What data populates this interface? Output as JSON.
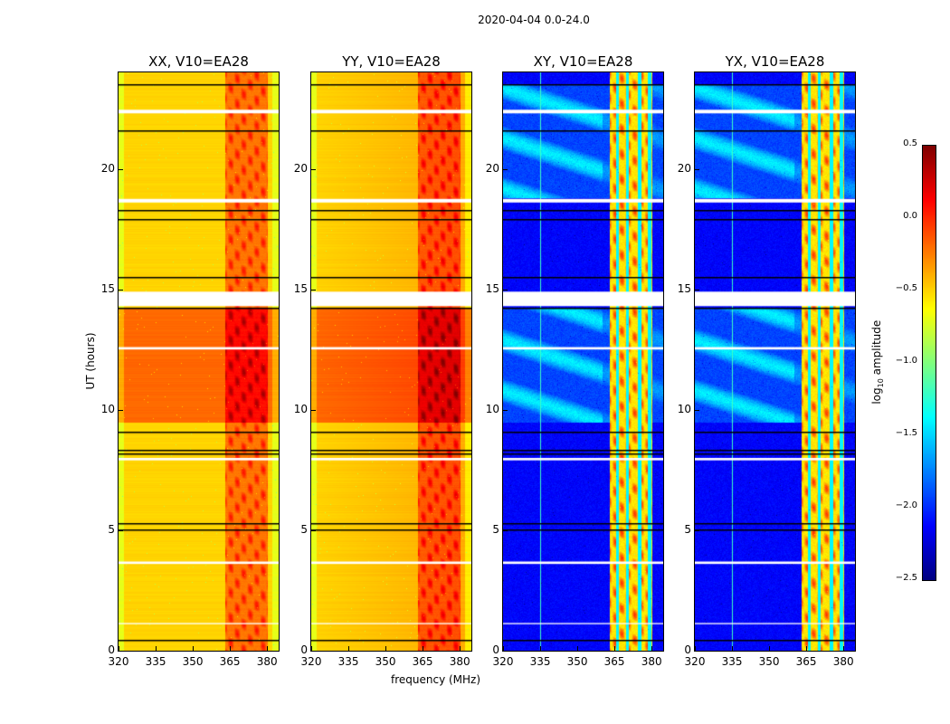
{
  "chart_data": {
    "type": "heatmap",
    "title": "2020-04-04 0.0-24.0",
    "xlabel": "frequency (MHz)",
    "ylabel": "UT (hours)",
    "xlim": [
      320,
      384.7
    ],
    "ylim": [
      0,
      24
    ],
    "xticks": [
      "320",
      "335",
      "350",
      "365",
      "380"
    ],
    "xtick_values": [
      320,
      335,
      350,
      365,
      380
    ],
    "yticks": [
      "0",
      "5",
      "10",
      "15",
      "20"
    ],
    "ytick_values": [
      0,
      5,
      10,
      15,
      20
    ],
    "panels": [
      {
        "title": "XX, V10=EA28",
        "kind": "parallel"
      },
      {
        "title": "YY, V10=EA28",
        "kind": "parallel"
      },
      {
        "title": "XY, V10=EA28",
        "kind": "cross"
      },
      {
        "title": "YX, V10=EA28",
        "kind": "cross"
      }
    ],
    "rfi_band_mhz": [
      363,
      380
    ],
    "enhanced_period_hours": [
      9.5,
      14.2
    ],
    "flagged_white_hours": [
      [
        14.3,
        14.9
      ],
      [
        18.6,
        18.75
      ],
      [
        22.3,
        22.45
      ],
      [
        12.5,
        12.6
      ],
      [
        7.9,
        8.0
      ],
      [
        3.6,
        3.7
      ],
      [
        1.1,
        1.15
      ]
    ],
    "black_line_hours": [
      0.45,
      5.05,
      5.3,
      8.2,
      8.35,
      9.1,
      14.25,
      15.5,
      17.9,
      18.3,
      21.6,
      23.5
    ],
    "colorbar": {
      "label_prefix": "log",
      "label_sub": "10",
      "label_suffix": "amplitude",
      "ticks": [
        "0.5",
        "0.0",
        "−0.5",
        "−1.0",
        "−1.5",
        "−2.0",
        "−2.5"
      ],
      "tick_values": [
        0.5,
        0.0,
        -0.5,
        -1.0,
        -1.5,
        -2.0,
        -2.5
      ],
      "range": [
        -2.5,
        0.5
      ],
      "colormap": "jet"
    }
  }
}
